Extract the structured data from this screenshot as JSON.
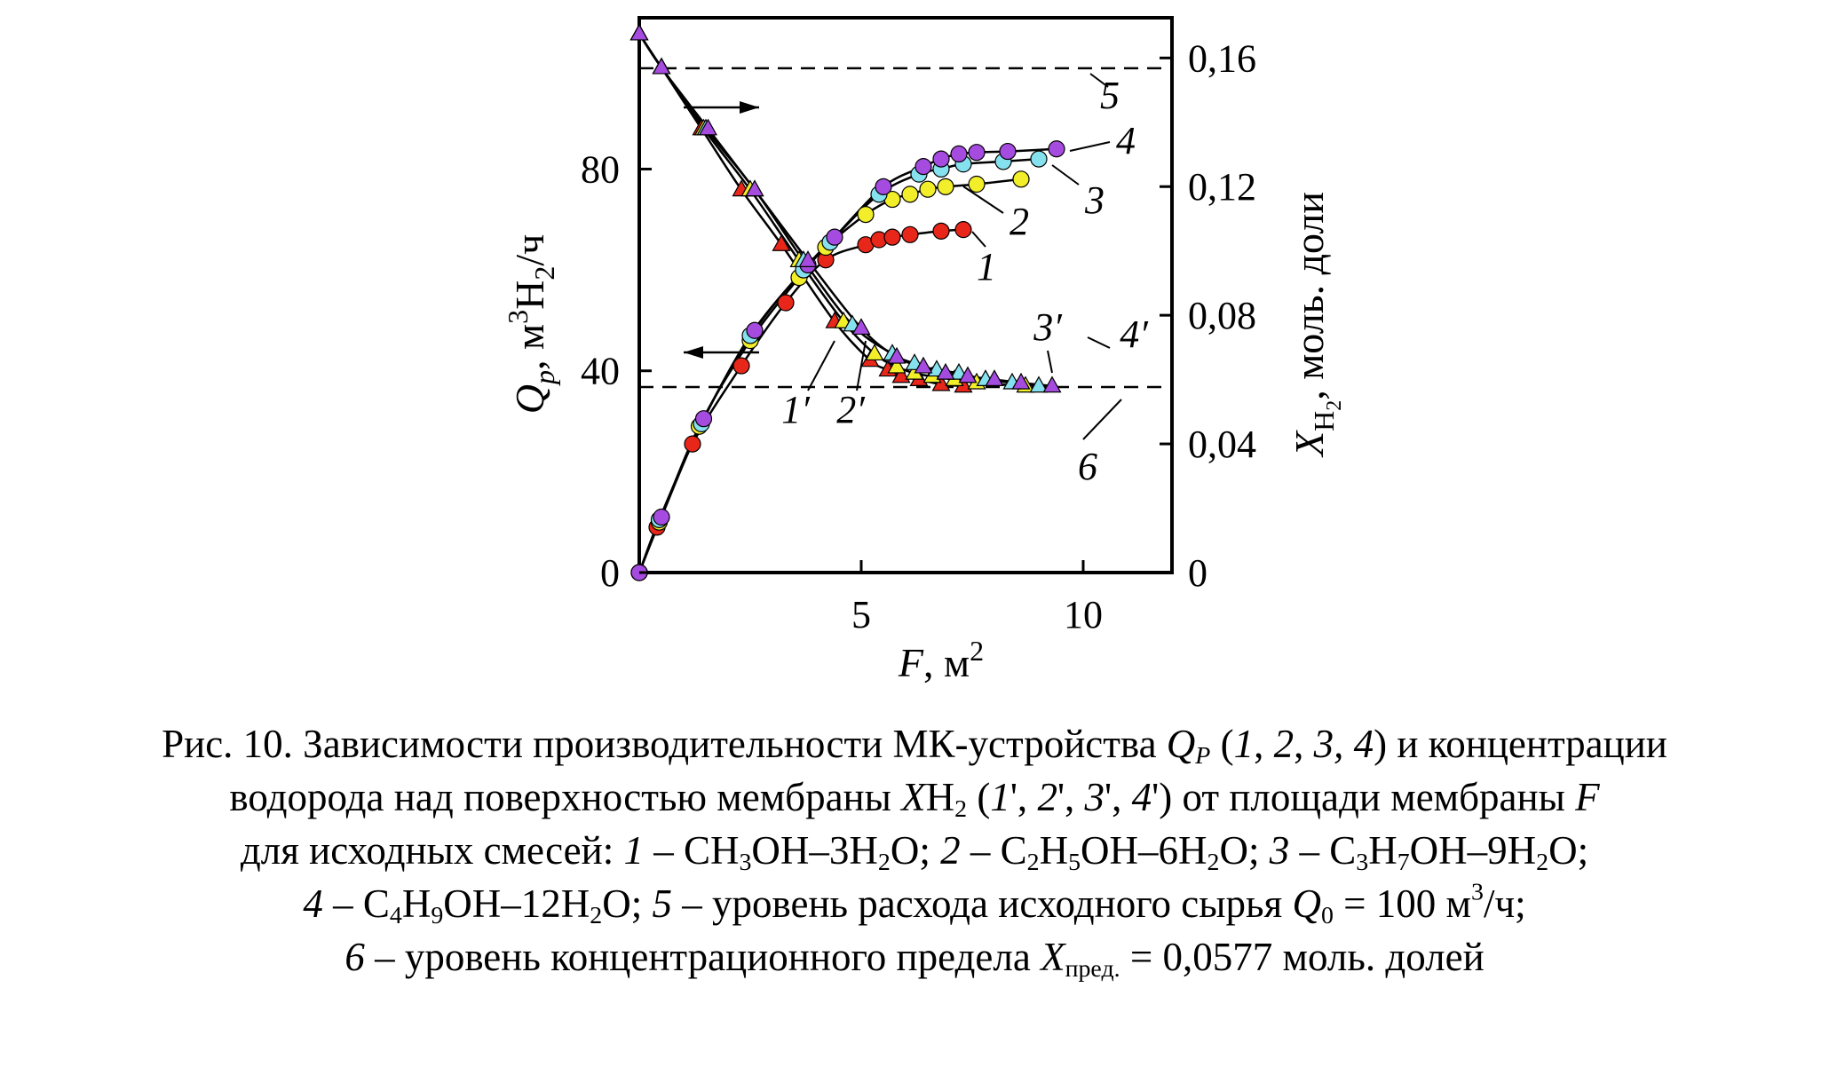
{
  "chart_data": {
    "type": "line",
    "x": {
      "label_symbol": "F",
      "label_unit": ", м",
      "label_sup": "2",
      "ticks": [
        "5",
        "10"
      ],
      "tick_values": [
        5,
        10
      ],
      "range": [
        0,
        12
      ]
    },
    "y_left": {
      "label_symbol": "Q",
      "label_sub": "p",
      "label_unit_a": ", м",
      "label_sup": "3",
      "label_unit_b": "H",
      "label_sub2": "2",
      "label_unit_c": "/ч",
      "ticks": [
        "0",
        "40",
        "80"
      ],
      "tick_values": [
        0,
        40,
        80
      ],
      "range": [
        0,
        110
      ]
    },
    "y_right": {
      "label_symbol": "X",
      "label_sub": "H",
      "label_sub2": "2",
      "label_unit": ", моль. доли",
      "ticks": [
        "0",
        "0,04",
        "0,08",
        "0,12",
        "0,16"
      ],
      "tick_values": [
        0,
        0.04,
        0.08,
        0.12,
        0.16
      ],
      "range": [
        0,
        0.1725
      ]
    },
    "grid": false,
    "colors": {
      "red": "#e8261a",
      "yellow": "#f2ee2a",
      "cyan": "#86e1ef",
      "purple": "#a64be0"
    },
    "series_Q": [
      {
        "name": "1",
        "color": "#e8261a",
        "f": [
          0,
          0.4,
          1.2,
          2.3,
          3.3,
          4.2,
          5.1,
          5.4,
          5.7,
          6.1,
          6.8,
          7.3
        ],
        "values": [
          0,
          9,
          25.5,
          41,
          53.5,
          62,
          65,
          66,
          66.5,
          67,
          67.7,
          68
        ]
      },
      {
        "name": "2",
        "color": "#f2ee2a",
        "f": [
          0,
          0.45,
          1.35,
          2.5,
          3.6,
          4.2,
          5.1,
          5.7,
          6.1,
          6.5,
          6.9,
          7.6,
          8.6
        ],
        "values": [
          0,
          10,
          29,
          46,
          58.5,
          64.5,
          71,
          74,
          75,
          76,
          76.5,
          77,
          78
        ]
      },
      {
        "name": "3",
        "color": "#86e1ef",
        "f": [
          0,
          0.45,
          1.4,
          2.5,
          3.7,
          4.3,
          5.4,
          6.3,
          6.8,
          7.3,
          8.2,
          9.0
        ],
        "values": [
          0,
          10.5,
          29.5,
          47,
          60,
          65.5,
          75,
          79,
          80,
          81,
          81.5,
          82
        ]
      },
      {
        "name": "4",
        "color": "#a64be0",
        "f": [
          0,
          0.5,
          1.45,
          2.6,
          3.8,
          4.4,
          5.5,
          6.4,
          6.8,
          7.2,
          7.6,
          8.3,
          9.4
        ],
        "values": [
          0,
          11,
          30.5,
          48,
          61,
          66.5,
          76.5,
          80.5,
          82,
          83,
          83.3,
          83.5,
          84
        ]
      }
    ],
    "series_X": [
      {
        "name": "1'",
        "color": "#e8261a",
        "f": [
          0,
          0.5,
          1.4,
          2.3,
          3.2,
          4.4,
          5.2,
          5.6,
          5.9,
          6.3,
          6.8,
          7.3
        ],
        "values": [
          0.1675,
          0.157,
          0.138,
          0.119,
          0.102,
          0.078,
          0.066,
          0.063,
          0.061,
          0.06,
          0.0585,
          0.058
        ]
      },
      {
        "name": "2'",
        "color": "#f2ee2a",
        "f": [
          0,
          0.5,
          1.45,
          2.5,
          3.6,
          4.6,
          5.3,
          5.8,
          6.2,
          6.6,
          7.1,
          7.6,
          8.7
        ],
        "values": [
          0.1675,
          0.157,
          0.138,
          0.119,
          0.097,
          0.078,
          0.068,
          0.064,
          0.062,
          0.061,
          0.06,
          0.059,
          0.058
        ]
      },
      {
        "name": "3'",
        "color": "#86e1ef",
        "f": [
          0,
          0.5,
          1.5,
          2.6,
          3.7,
          4.8,
          5.7,
          6.2,
          6.7,
          7.2,
          7.8,
          8.4,
          9.0
        ],
        "values": [
          0.1675,
          0.157,
          0.138,
          0.119,
          0.097,
          0.077,
          0.068,
          0.065,
          0.063,
          0.062,
          0.06,
          0.059,
          0.058
        ]
      },
      {
        "name": "4'",
        "color": "#a64be0",
        "f": [
          0,
          0.5,
          1.55,
          2.6,
          3.8,
          5.0,
          5.8,
          6.4,
          6.9,
          7.4,
          8.0,
          8.6,
          9.3
        ],
        "values": [
          0.1675,
          0.157,
          0.138,
          0.119,
          0.097,
          0.076,
          0.067,
          0.064,
          0.062,
          0.061,
          0.06,
          0.059,
          0.058
        ]
      }
    ],
    "reference_lines": [
      {
        "name": "5",
        "axis": "left",
        "value": 100
      },
      {
        "name": "6",
        "axis": "right",
        "value": 0.0577
      }
    ],
    "labels": {
      "s1": "1",
      "s2": "2",
      "s3": "3",
      "s4": "4",
      "s1p": "1′",
      "s2p": "2′",
      "s3p": "3′",
      "s4p": "4′",
      "l5": "5",
      "l6": "6"
    }
  },
  "caption": {
    "p01": "Рис. 10. Зависимости производительности МК-устройства ",
    "p02": "Q",
    "p03": "P",
    "p04": " (",
    "p05": "1",
    "p06": ", ",
    "p07": "2",
    "p08": ", ",
    "p09": "3,",
    "p10": " ",
    "p11": "4",
    "p12": ") и концентрации",
    "p13": "водорода над поверхностью мембраны ",
    "p14": "X",
    "p15": "H",
    "p16": "2",
    "p17": " (",
    "p18": "1",
    "p19": "', ",
    "p20": "2",
    "p21": "', ",
    "p22": "3",
    "p23": "', ",
    "p24": "4",
    "p25": "') от площади мембраны ",
    "p26": "F",
    "p27": "для исходных смесей: ",
    "p28": "1",
    "p29": " – CH",
    "p30": "3",
    "p31": "OH–3H",
    "p32": "2",
    "p33": "O; ",
    "p34": "2",
    "p35": " – C",
    "p36": "2",
    "p37": "H",
    "p38": "5",
    "p39": "OH–6H",
    "p40": "2",
    "p41": "O; ",
    "p42": "3",
    "p43": " – C",
    "p44": "3",
    "p45": "H",
    "p46": "7",
    "p47": "OH–9H",
    "p48": "2",
    "p49": "O;",
    "p50": "4",
    "p51": " – C",
    "p52": "4",
    "p53": "H",
    "p54": "9",
    "p55": "OH–12H",
    "p56": "2",
    "p57": "O; ",
    "p58": "5",
    "p59": " – уровень расхода исходного сырья ",
    "p60": "Q",
    "p61": "0",
    "p62": " = 100 м",
    "p63": "3",
    "p64": "/ч;",
    "p65": "6",
    "p66": " – уровень концентрационного предела ",
    "p67": "X",
    "p68": "пред.",
    "p69": " = 0,0577 моль. долей"
  }
}
